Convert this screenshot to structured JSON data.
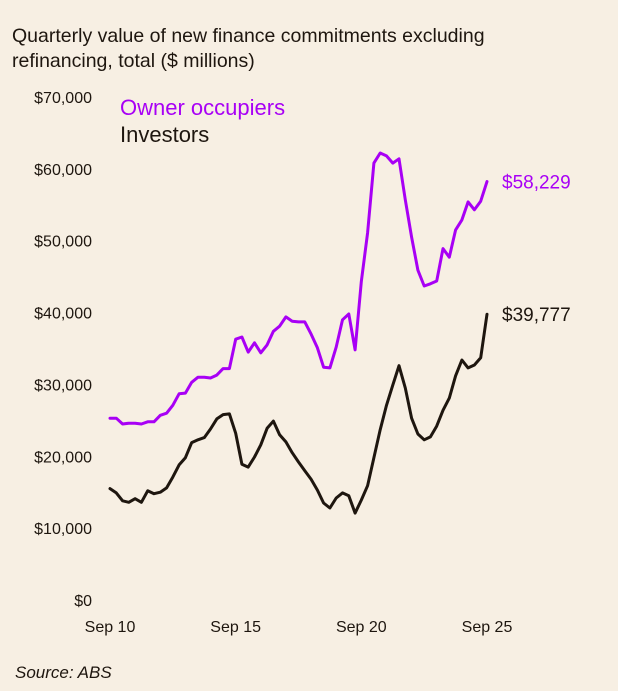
{
  "chart_data": {
    "type": "line",
    "title_lines": [
      "Quarterly value of new finance commitments excluding",
      "refinancing, total ($ millions)"
    ],
    "source": "Source: ABS",
    "x_start": "Sep 10",
    "x_end": "Sep 25",
    "frequency": "quarterly",
    "x_ticks": [
      "Sep 10",
      "Sep 15",
      "Sep 20",
      "Sep 25"
    ],
    "y_ticks": [
      "$0",
      "$10,000",
      "$20,000",
      "$30,000",
      "$40,000",
      "$50,000",
      "$60,000",
      "$70,000"
    ],
    "ylim": [
      0,
      70000
    ],
    "grid": false,
    "legend_placement": "top-left",
    "series": [
      {
        "name": "Owner occupiers",
        "color": "#a800f5",
        "end_label": "$58,229",
        "values": [
          25300,
          25300,
          24500,
          24600,
          24600,
          24500,
          24800,
          24800,
          25700,
          26000,
          27100,
          28700,
          28800,
          30300,
          31000,
          31000,
          30900,
          31300,
          32200,
          32200,
          36300,
          36600,
          34500,
          35800,
          34400,
          35500,
          37400,
          38100,
          39400,
          38800,
          38700,
          38700,
          37000,
          35100,
          32400,
          32300,
          35200,
          39000,
          39800,
          34800,
          44300,
          51100,
          60800,
          62200,
          61800,
          60800,
          61400,
          55700,
          50500,
          45900,
          43700,
          44000,
          44400,
          48900,
          47700,
          51500,
          52900,
          55400,
          54300,
          55500,
          58229
        ]
      },
      {
        "name": "Investors",
        "color": "#1e160f",
        "end_label": "$39,777",
        "values": [
          15500,
          14900,
          13800,
          13600,
          14100,
          13600,
          15200,
          14800,
          15000,
          15600,
          17100,
          18800,
          19800,
          21900,
          22300,
          22600,
          23800,
          25200,
          25800,
          25900,
          23200,
          18900,
          18500,
          19900,
          21600,
          23900,
          24900,
          23000,
          22000,
          20500,
          19200,
          18000,
          16800,
          15300,
          13500,
          12800,
          14200,
          14900,
          14500,
          12100,
          13900,
          15900,
          19800,
          23700,
          27100,
          29900,
          32600,
          29500,
          25300,
          23100,
          22300,
          22700,
          24200,
          26400,
          28100,
          31200,
          33400,
          32300,
          32700,
          33700,
          39777
        ]
      }
    ]
  }
}
